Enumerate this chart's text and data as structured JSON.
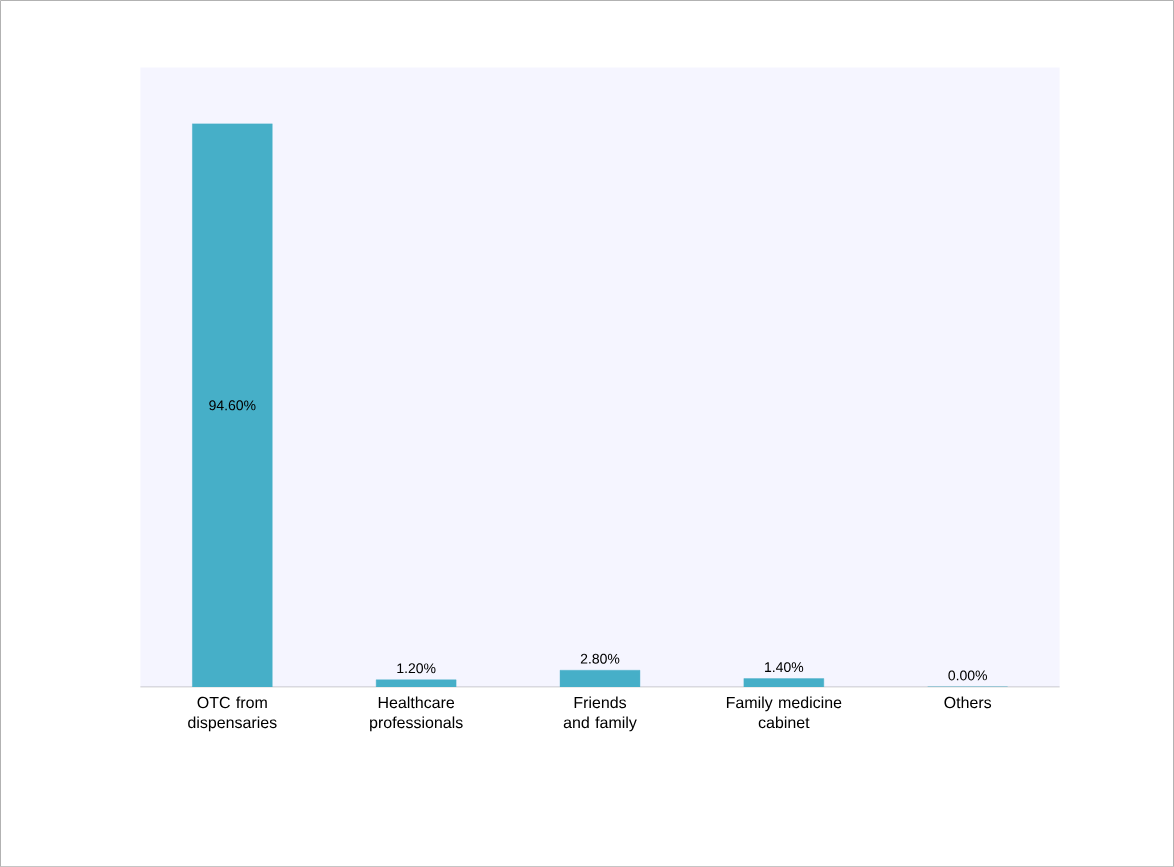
{
  "chart_data": {
    "type": "bar",
    "categories": [
      "OTC from dispensaries",
      "Healthcare professionals",
      "Friends and family",
      "Family medicine cabinet",
      "Others"
    ],
    "values": [
      94.6,
      1.2,
      2.8,
      1.4,
      0.0
    ],
    "value_labels": [
      "94.60%",
      "1.20%",
      "2.80%",
      "1.40%",
      "0.00%"
    ],
    "color": "#46afc8"
  }
}
